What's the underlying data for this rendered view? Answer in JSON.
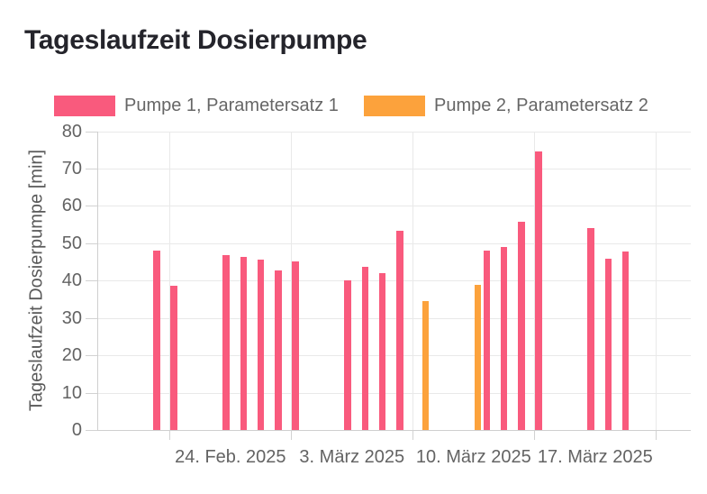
{
  "title": "Tageslaufzeit Dosierpumpe",
  "legend": [
    {
      "label": "Pumpe 1, Parametersatz 1",
      "color": "#F95A7D"
    },
    {
      "label": "Pumpe 2, Parametersatz 2",
      "color": "#FCA23C"
    }
  ],
  "chart_data": {
    "type": "bar",
    "barmode": "group",
    "title": "Tageslaufzeit Dosierpumpe",
    "xlabel": "",
    "ylabel": "Tageslaufzeit Dosierpumpe [min]",
    "ylim": [
      0,
      80
    ],
    "yticks": [
      0,
      10,
      20,
      30,
      40,
      50,
      60,
      70,
      80
    ],
    "grid": true,
    "legend_position": "top",
    "xticks": [
      {
        "label": "24. Feb. 2025",
        "date": "2025-02-24"
      },
      {
        "label": "3. März 2025",
        "date": "2025-03-03"
      },
      {
        "label": "10. März 2025",
        "date": "2025-03-10"
      },
      {
        "label": "17. März 2025",
        "date": "2025-03-17"
      }
    ],
    "series": [
      {
        "name": "Pumpe 1, Parametersatz 1",
        "color": "#F95A7D",
        "points": [
          {
            "date": "2025-02-20",
            "value": 48.0
          },
          {
            "date": "2025-02-21",
            "value": 38.6
          },
          {
            "date": "2025-02-24",
            "value": 46.9
          },
          {
            "date": "2025-02-25",
            "value": 46.3
          },
          {
            "date": "2025-02-26",
            "value": 45.6
          },
          {
            "date": "2025-02-27",
            "value": 42.6
          },
          {
            "date": "2025-02-28",
            "value": 45.2
          },
          {
            "date": "2025-03-03",
            "value": 40.1
          },
          {
            "date": "2025-03-04",
            "value": 43.7
          },
          {
            "date": "2025-03-05",
            "value": 42.1
          },
          {
            "date": "2025-03-06",
            "value": 53.3
          },
          {
            "date": "2025-03-11",
            "value": 48.1
          },
          {
            "date": "2025-03-12",
            "value": 48.9
          },
          {
            "date": "2025-03-13",
            "value": 55.8
          },
          {
            "date": "2025-03-14",
            "value": 74.5
          },
          {
            "date": "2025-03-17",
            "value": 54.0
          },
          {
            "date": "2025-03-18",
            "value": 45.9
          },
          {
            "date": "2025-03-19",
            "value": 47.9
          }
        ]
      },
      {
        "name": "Pumpe 2, Parametersatz 2",
        "color": "#FCA23C",
        "points": [
          {
            "date": "2025-03-07",
            "value": 34.6
          },
          {
            "date": "2025-03-10",
            "value": 38.8
          }
        ]
      }
    ]
  }
}
